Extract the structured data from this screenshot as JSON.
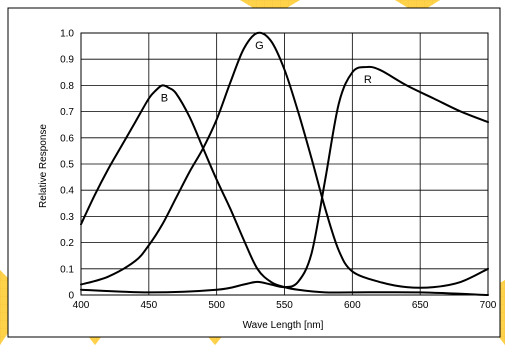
{
  "chart_data": {
    "type": "line",
    "title": "",
    "xlabel": "Wave Length [nm]",
    "ylabel": "Relative Response",
    "xlim": [
      400,
      700
    ],
    "ylim": [
      0,
      1.0
    ],
    "x_ticks": [
      "400",
      "450",
      "500",
      "550",
      "600",
      "650",
      "700"
    ],
    "y_ticks": [
      "0",
      "0.1",
      "0.2",
      "0.3",
      "0.4",
      "0.5",
      "0.6",
      "0.7",
      "0.8",
      "0.9",
      "1.0"
    ],
    "grid": true,
    "line_color": "#000000",
    "series": [
      {
        "name": "B",
        "x": [
          400,
          410,
          420,
          430,
          440,
          450,
          455,
          460,
          465,
          470,
          480,
          490,
          500,
          510,
          520,
          530,
          540,
          550,
          560,
          580,
          600,
          650,
          700
        ],
        "y": [
          0.27,
          0.38,
          0.48,
          0.57,
          0.66,
          0.75,
          0.78,
          0.8,
          0.79,
          0.77,
          0.68,
          0.56,
          0.44,
          0.33,
          0.21,
          0.1,
          0.05,
          0.03,
          0.02,
          0.01,
          0.01,
          0.01,
          0.0
        ]
      },
      {
        "name": "G",
        "x": [
          400,
          420,
          440,
          450,
          460,
          470,
          480,
          490,
          500,
          510,
          520,
          530,
          540,
          550,
          560,
          570,
          580,
          590,
          600,
          620,
          640,
          660,
          680,
          700
        ],
        "y": [
          0.04,
          0.07,
          0.13,
          0.19,
          0.27,
          0.37,
          0.47,
          0.56,
          0.67,
          0.81,
          0.94,
          1.0,
          0.97,
          0.86,
          0.7,
          0.52,
          0.33,
          0.17,
          0.09,
          0.05,
          0.03,
          0.03,
          0.05,
          0.1
        ]
      },
      {
        "name": "R",
        "x": [
          400,
          450,
          500,
          520,
          530,
          540,
          550,
          560,
          570,
          580,
          590,
          600,
          610,
          620,
          640,
          660,
          680,
          700
        ],
        "y": [
          0.02,
          0.01,
          0.02,
          0.04,
          0.05,
          0.04,
          0.03,
          0.05,
          0.16,
          0.44,
          0.73,
          0.85,
          0.87,
          0.86,
          0.8,
          0.75,
          0.7,
          0.66
        ]
      }
    ]
  }
}
